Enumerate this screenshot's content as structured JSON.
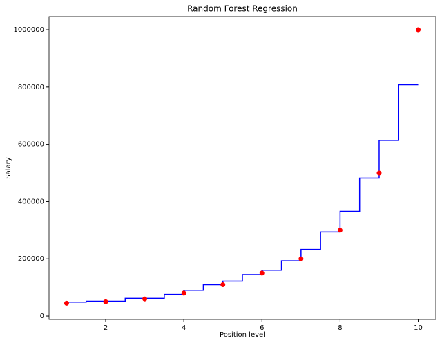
{
  "chart_data": {
    "type": "scatter",
    "title": "Random Forest Regression",
    "x_label": "Position level",
    "y_label": "Salary",
    "x": [
      1,
      2,
      3,
      4,
      5,
      6,
      7,
      8,
      9,
      10
    ],
    "values": [
      45000,
      50000,
      60000,
      80000,
      110000,
      150000,
      200000,
      300000,
      500000,
      1000000
    ],
    "color": "#ff0000",
    "line": {
      "drawstyle": "steps-post",
      "color": "#0000ff",
      "x": [
        1,
        1.5,
        2.5,
        3.5,
        4,
        4.5,
        5,
        5.5,
        6,
        6.5,
        7,
        7.5,
        8,
        8.5,
        9,
        9.5,
        10
      ],
      "values": [
        49000,
        52000,
        62000,
        76000,
        90000,
        110000,
        122000,
        145000,
        160000,
        193000,
        233000,
        294000,
        366000,
        482000,
        614000,
        808000,
        808000
      ]
    },
    "xlim": [
      0.55,
      10.45
    ],
    "ylim": [
      -12000,
      1046000
    ],
    "xticks": [
      2,
      4,
      6,
      8,
      10
    ],
    "yticks": [
      0,
      200000,
      400000,
      600000,
      800000,
      1000000
    ]
  }
}
